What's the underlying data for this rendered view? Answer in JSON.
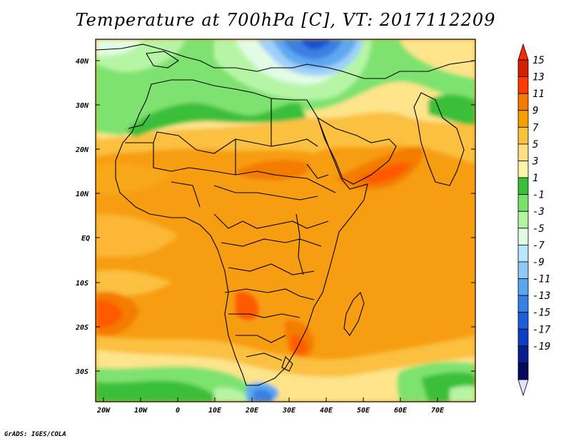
{
  "title": "Temperature at 700hPa [C], VT: 2017112209",
  "credit": "GrADS: IGES/COLA",
  "y_ticks": [
    "40N",
    "30N",
    "20N",
    "10N",
    "EQ",
    "10S",
    "20S",
    "30S"
  ],
  "x_ticks": [
    "20W",
    "10W",
    "0",
    "10E",
    "20E",
    "30E",
    "40E",
    "50E",
    "60E",
    "70E"
  ],
  "colorbar": {
    "labels": [
      "15",
      "13",
      "11",
      "9",
      "7",
      "5",
      "3",
      "1",
      "-1",
      "-3",
      "-5",
      "-7",
      "-9",
      "-11",
      "-13",
      "-15",
      "-17",
      "-19"
    ],
    "colors": [
      "#d62000",
      "#ff3c00",
      "#f57a00",
      "#f6a000",
      "#fbc23c",
      "#fde184",
      "#fff5a8",
      "#3bbf3b",
      "#77e36a",
      "#b4f5a3",
      "#e0fbe6",
      "#b8e7fb",
      "#8fc9f7",
      "#5aa7f0",
      "#3581e5",
      "#1c5fd8",
      "#0f3ec0",
      "#0a1f8c",
      "#060a5e"
    ],
    "max_label": "15",
    "min_label": "-19"
  },
  "legend": {
    "top_arrow_color": "#ff2a00",
    "bottom_arrow_color": "#e2e2ff"
  }
}
